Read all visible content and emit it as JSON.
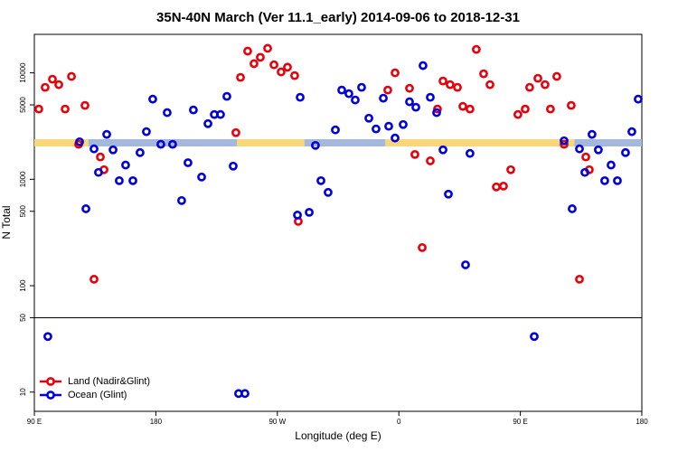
{
  "chart_data": {
    "type": "scatter",
    "title": "35N-40N March (Ver 11.1_early)   2014-09-06 to 2018-12-31",
    "x_label": "Longitude (deg E)",
    "y_label": "N Total",
    "log_y": true,
    "legend": "bottomleft",
    "xlim": [
      90,
      540
    ],
    "ylim": [
      6.6,
      23000
    ],
    "xticks": [
      {
        "value": 90,
        "label": "90 E"
      },
      180,
      {
        "value": 270,
        "label": "90 W"
      },
      {
        "value": 360,
        "label": "0"
      },
      {
        "value": 450,
        "label": "90 E"
      },
      {
        "value": 540,
        "label": "180"
      }
    ],
    "yticks": [
      10,
      50,
      100,
      500,
      1000,
      5000,
      10000
    ],
    "hline": 50,
    "series": [
      {
        "style": "band",
        "color": "#f7d77a",
        "x": [
          90,
          100,
          110,
          120,
          130,
          140,
          150,
          160,
          170,
          180,
          190,
          200,
          210,
          220,
          230,
          240,
          250,
          260,
          270,
          280,
          290,
          300,
          310,
          320,
          330,
          340,
          350,
          360,
          370,
          380,
          390,
          400,
          410,
          420,
          430,
          440,
          450,
          460,
          470,
          480,
          490,
          500,
          510,
          520,
          530,
          540
        ],
        "values": [
          2200,
          2200,
          2200,
          2200,
          2200,
          null,
          null,
          null,
          null,
          null,
          null,
          null,
          null,
          null,
          null,
          2200,
          2200,
          2200,
          2200,
          2200,
          2200,
          null,
          null,
          null,
          null,
          null,
          2200,
          2200,
          2200,
          2200,
          2200,
          2200,
          2200,
          2200,
          2200,
          2200,
          2200,
          2200,
          2200,
          2200,
          2200,
          null,
          null,
          null,
          null,
          null
        ]
      },
      {
        "style": "band",
        "color": "#a4b8dc",
        "x": [
          90,
          100,
          110,
          120,
          130,
          140,
          150,
          160,
          170,
          180,
          190,
          200,
          210,
          220,
          230,
          240,
          250,
          260,
          270,
          280,
          290,
          300,
          310,
          320,
          330,
          340,
          350,
          360,
          370,
          380,
          390,
          400,
          410,
          420,
          430,
          440,
          450,
          460,
          470,
          480,
          490,
          500,
          510,
          520,
          530,
          540
        ],
        "values": [
          null,
          null,
          null,
          null,
          2200,
          2200,
          2200,
          2200,
          2200,
          2200,
          2200,
          2200,
          2200,
          2200,
          2200,
          2200,
          null,
          null,
          null,
          null,
          2200,
          2200,
          2200,
          2200,
          2200,
          2200,
          2200,
          null,
          null,
          null,
          null,
          null,
          null,
          null,
          null,
          null,
          null,
          null,
          null,
          null,
          2200,
          2200,
          2200,
          2200,
          2200,
          2200
        ]
      },
      {
        "name": "Land (Nadir&Glint)",
        "color": "#e8000b",
        "x": [
          93.3,
          98.0,
          103.4,
          108.1,
          112.8,
          117.5,
          122.8,
          127.5,
          134.2,
          138.9,
          141.6,
          239.3,
          242.7,
          248.0,
          252.7,
          257.4,
          262.8,
          267.5,
          272.8,
          277.5,
          282.8,
          285.5,
          351.8,
          357.2,
          367.9,
          371.9,
          377.3,
          383.3,
          388.6,
          392.7,
          398.0,
          403.4,
          407.4,
          412.7,
          417.4,
          422.8,
          427.5,
          432.2,
          437.5,
          442.9,
          448.2,
          453.6,
          456.9,
          463.0,
          468.3,
          472.3,
          477.0,
          482.4,
          487.7,
          493.8,
          498.5,
          501.1
        ],
        "values": [
          4570,
          7310,
          8710,
          7740,
          4570,
          9250,
          2130,
          4940,
          115,
          1620,
          1230,
          2740,
          9060,
          16000,
          12200,
          14000,
          17000,
          11900,
          10200,
          11300,
          9420,
          402,
          6890,
          10000,
          7160,
          1710,
          228,
          1490,
          4570,
          8380,
          7740,
          7310,
          4840,
          4570,
          16600,
          9800,
          7740,
          847,
          863,
          1230,
          4060,
          4570,
          7310,
          8890,
          7740,
          4570,
          9250,
          2130,
          4940,
          115,
          1620,
          1230
        ]
      },
      {
        "name": "Ocean (Glint)",
        "color": "#0000dd",
        "x": [
          100.0,
          123.5,
          128.2,
          134.2,
          137.5,
          143.6,
          148.3,
          152.9,
          157.6,
          163.0,
          168.3,
          173.0,
          177.7,
          183.7,
          188.4,
          192.4,
          199.1,
          203.8,
          207.8,
          213.9,
          218.6,
          223.3,
          227.9,
          232.6,
          237.3,
          241.3,
          246.0,
          284.9,
          286.9,
          293.6,
          298.2,
          302.3,
          307.6,
          313.0,
          317.7,
          323.0,
          327.7,
          332.4,
          337.8,
          343.1,
          348.5,
          352.5,
          357.2,
          363.2,
          367.9,
          372.6,
          377.9,
          383.3,
          388.0,
          392.7,
          396.7,
          409.4,
          412.7,
          460.3,
          482.4,
          488.4,
          493.8,
          497.8,
          503.1,
          507.8,
          512.5,
          517.2,
          521.9,
          527.9,
          532.6,
          537.3
        ],
        "values": [
          33.3,
          2250,
          528,
          1930,
          1160,
          2640,
          1890,
          970,
          1360,
          970,
          1780,
          2800,
          5660,
          2130,
          4230,
          2130,
          631,
          1430,
          4480,
          1050,
          3330,
          4060,
          4060,
          6010,
          1330,
          9.7,
          9.7,
          461,
          5890,
          489,
          2080,
          970,
          753,
          2910,
          6890,
          6370,
          5560,
          7310,
          3750,
          2970,
          5780,
          3150,
          2440,
          3270,
          5350,
          4750,
          11700,
          5890,
          4230,
          1890,
          725,
          157,
          1750,
          33.3,
          2300,
          528,
          1930,
          1160,
          2640,
          1890,
          970,
          1360,
          970,
          1780,
          2800,
          5660
        ]
      }
    ]
  }
}
